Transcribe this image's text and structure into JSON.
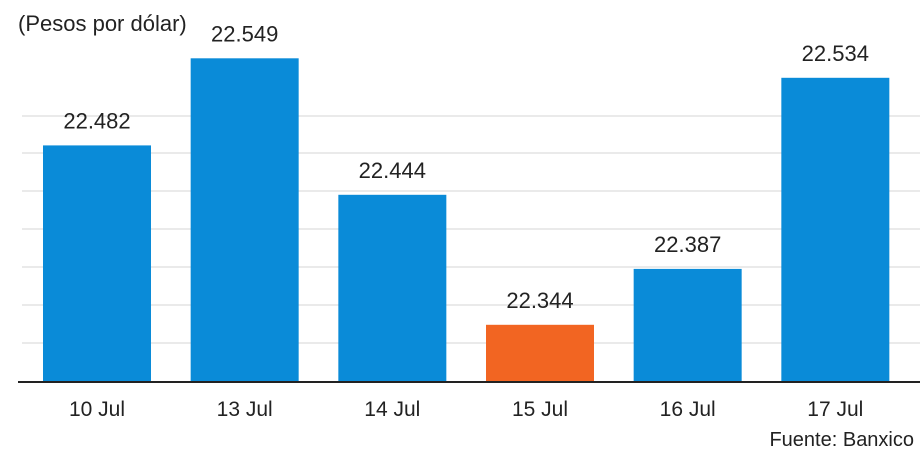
{
  "chart_data": {
    "type": "bar",
    "subtitle": "(Pesos por dólar)",
    "categories": [
      "10 Jul",
      "13 Jul",
      "14 Jul",
      "15 Jul",
      "16 Jul",
      "17 Jul"
    ],
    "values": [
      22.482,
      22.549,
      22.444,
      22.344,
      22.387,
      22.534
    ],
    "value_labels": [
      "22.482",
      "22.549",
      "22.444",
      "22.344",
      "22.387",
      "22.534"
    ],
    "highlight_category": "15 Jul",
    "colors": {
      "bar": "#0a8bd8",
      "highlight": "#f26522",
      "gridline": "#dedede",
      "baseline": "#222222",
      "text": "#222222"
    },
    "ylim": [
      22.3,
      22.57
    ],
    "grid": true,
    "xlabel": "",
    "ylabel": "",
    "source": "Fuente: Banxico"
  }
}
